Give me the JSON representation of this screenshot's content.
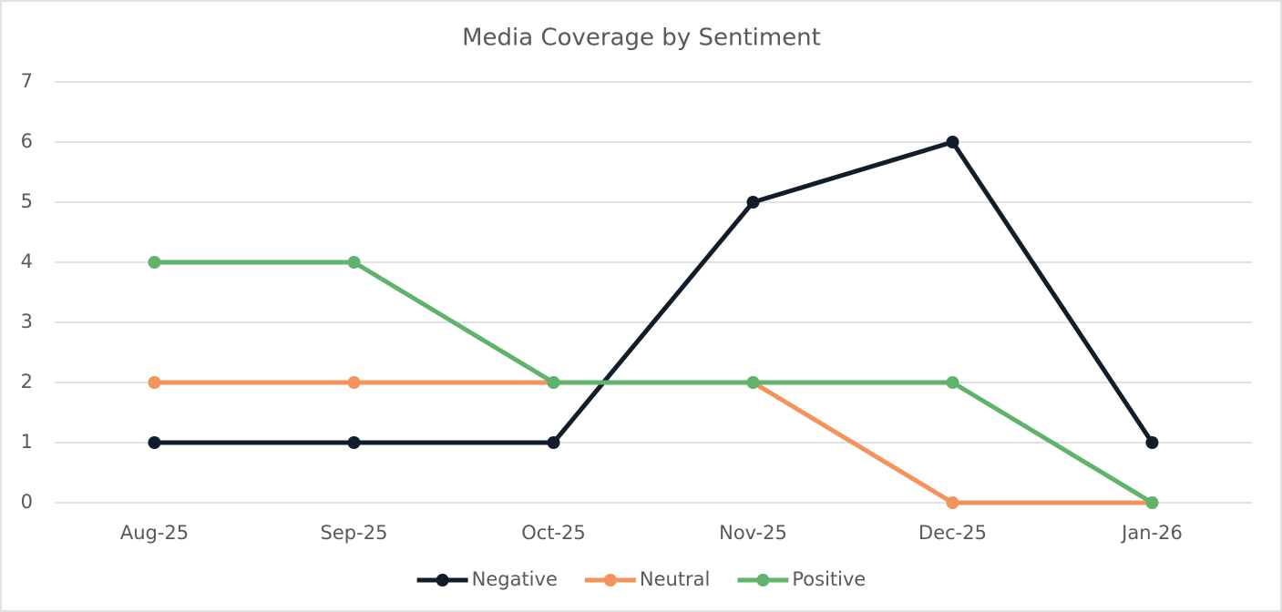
{
  "chart_data": {
    "type": "line",
    "title": "Media Coverage by Sentiment",
    "categories": [
      "Aug-25",
      "Sep-25",
      "Oct-25",
      "Nov-25",
      "Dec-25",
      "Jan-26"
    ],
    "series": [
      {
        "name": "Negative",
        "color": "#111d2b",
        "values": [
          1,
          1,
          1,
          5,
          6,
          1
        ]
      },
      {
        "name": "Neutral",
        "color": "#f4945a",
        "values": [
          2,
          2,
          2,
          2,
          0,
          0
        ]
      },
      {
        "name": "Positive",
        "color": "#5fb36b",
        "values": [
          4,
          4,
          2,
          2,
          2,
          0
        ]
      }
    ],
    "ylim": [
      0,
      7
    ],
    "yticks": [
      0,
      1,
      2,
      3,
      4,
      5,
      6,
      7
    ],
    "grid": true,
    "legend": "bottom"
  }
}
